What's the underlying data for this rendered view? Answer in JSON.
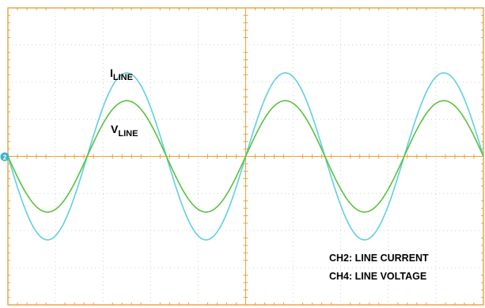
{
  "chart_data": {
    "type": "line",
    "title": "",
    "xlabel": "",
    "ylabel": "",
    "xlim": [
      0,
      10
    ],
    "ylim": [
      -4,
      4
    ],
    "x_divisions": 10,
    "y_divisions": 8,
    "grid": true,
    "grid_style": "dotted",
    "frame_color": "#e8a33c",
    "background": "#ffffff",
    "ground_marker_label": "2",
    "series": [
      {
        "name": "I",
        "name_subscript": "LINE",
        "channel": "CH2",
        "color": "#5fd0e0",
        "amplitude": 2.25,
        "frequency_cycles_per_screen": 3,
        "start_phase": "negative-going",
        "note": "sine"
      },
      {
        "name": "V",
        "name_subscript": "LINE",
        "channel": "CH4",
        "color": "#58c23e",
        "amplitude": 1.5,
        "frequency_cycles_per_screen": 3,
        "start_phase": "negative-going",
        "note": "sine"
      }
    ],
    "annotations": [
      "CH2: LINE CURRENT",
      "CH4: LINE VOLTAGE"
    ]
  }
}
